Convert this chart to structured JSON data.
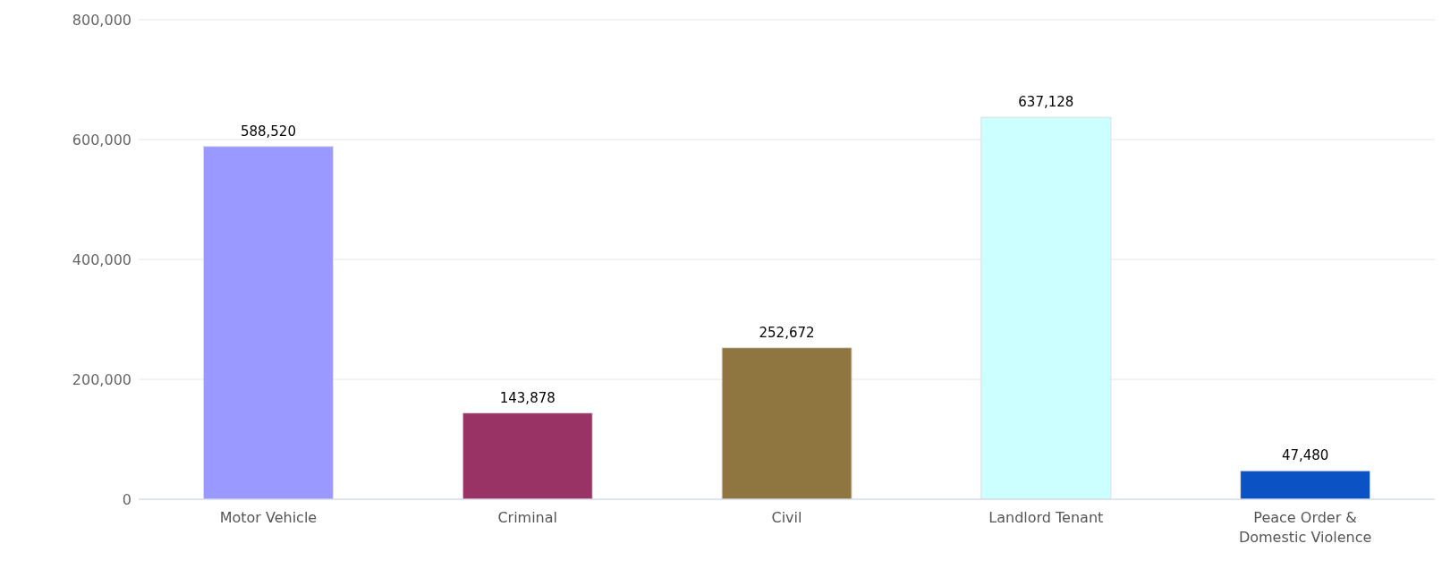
{
  "chart_data": {
    "type": "bar",
    "categories": [
      "Motor Vehicle",
      "Criminal",
      "Civil",
      "Landlord Tenant",
      "Peace Order & Domestic Violence"
    ],
    "values": [
      588520,
      143878,
      252672,
      637128,
      47480
    ],
    "colors": [
      "#9999ff",
      "#993366",
      "#8f7540",
      "#ccffff",
      "#0b52c4"
    ],
    "value_labels": [
      "588,520",
      "143,878",
      "252,672",
      "637,128",
      "47,480"
    ],
    "ylim": [
      0,
      800000
    ],
    "yticks": [
      0,
      {
        "value": 200000,
        "label": "200,000"
      },
      {
        "value": 400000,
        "label": "400,000"
      },
      {
        "value": 600000,
        "label": "600,000"
      },
      {
        "value": 800000,
        "label": "800,000"
      }
    ],
    "grid": "y"
  }
}
